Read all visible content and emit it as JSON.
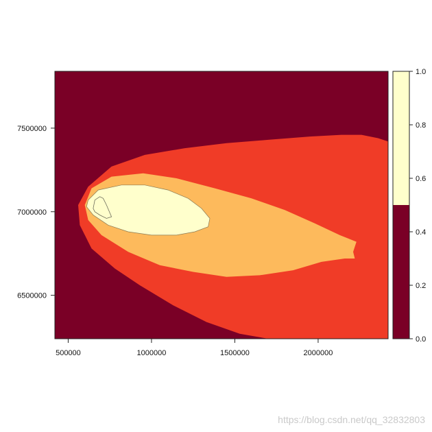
{
  "chart_data": {
    "type": "heatmap",
    "title": "",
    "xlabel": "",
    "ylabel": "",
    "xlim": [
      420000,
      2420000
    ],
    "ylim": [
      6240000,
      7840000
    ],
    "x_ticks": [
      {
        "value": 500000,
        "label": "500000"
      },
      {
        "value": 1000000,
        "label": "1000000"
      },
      {
        "value": 1500000,
        "label": "1500000"
      },
      {
        "value": 2000000,
        "label": "2000000"
      }
    ],
    "y_ticks": [
      {
        "value": 6500000,
        "label": "6500000"
      },
      {
        "value": 7000000,
        "label": "7000000"
      },
      {
        "value": 7500000,
        "label": "7500000"
      }
    ],
    "regions": [
      {
        "name": "outer",
        "color": "#F03C27",
        "polygon": [
          [
            1700000,
            6240000
          ],
          [
            1530000,
            6270000
          ],
          [
            1330000,
            6340000
          ],
          [
            1130000,
            6440000
          ],
          [
            930000,
            6560000
          ],
          [
            780000,
            6660000
          ],
          [
            640000,
            6780000
          ],
          [
            570000,
            6920000
          ],
          [
            560000,
            7040000
          ],
          [
            620000,
            7150000
          ],
          [
            760000,
            7270000
          ],
          [
            960000,
            7340000
          ],
          [
            1200000,
            7380000
          ],
          [
            1450000,
            7410000
          ],
          [
            1700000,
            7430000
          ],
          [
            1950000,
            7450000
          ],
          [
            2140000,
            7460000
          ],
          [
            2260000,
            7460000
          ],
          [
            2360000,
            7440000
          ],
          [
            2420000,
            7420000
          ],
          [
            2420000,
            6240000
          ]
        ]
      },
      {
        "name": "middle",
        "color": "#FDBA5C",
        "polygon": [
          [
            600000,
            7040000
          ],
          [
            640000,
            7140000
          ],
          [
            760000,
            7210000
          ],
          [
            950000,
            7230000
          ],
          [
            1150000,
            7200000
          ],
          [
            1380000,
            7140000
          ],
          [
            1600000,
            7080000
          ],
          [
            1800000,
            7010000
          ],
          [
            1980000,
            6930000
          ],
          [
            2130000,
            6860000
          ],
          [
            2230000,
            6820000
          ],
          [
            2210000,
            6760000
          ],
          [
            2220000,
            6720000
          ],
          [
            2160000,
            6720000
          ],
          [
            2020000,
            6700000
          ],
          [
            1850000,
            6650000
          ],
          [
            1650000,
            6620000
          ],
          [
            1450000,
            6610000
          ],
          [
            1250000,
            6640000
          ],
          [
            1050000,
            6680000
          ],
          [
            860000,
            6760000
          ],
          [
            700000,
            6860000
          ],
          [
            620000,
            6950000
          ]
        ]
      },
      {
        "name": "inner",
        "color": "#FFFFCC",
        "polygon": [
          [
            620000,
            7070000
          ],
          [
            680000,
            7130000
          ],
          [
            820000,
            7160000
          ],
          [
            960000,
            7160000
          ],
          [
            1100000,
            7130000
          ],
          [
            1220000,
            7080000
          ],
          [
            1300000,
            7020000
          ],
          [
            1350000,
            6960000
          ],
          [
            1340000,
            6910000
          ],
          [
            1260000,
            6880000
          ],
          [
            1150000,
            6860000
          ],
          [
            1000000,
            6860000
          ],
          [
            860000,
            6880000
          ],
          [
            740000,
            6920000
          ],
          [
            650000,
            6980000
          ],
          [
            610000,
            7030000
          ]
        ]
      }
    ],
    "contour_line": {
      "color": "#6b6b5a",
      "polygon": [
        [
          650000,
          7020000
        ],
        [
          660000,
          7070000
        ],
        [
          690000,
          7090000
        ],
        [
          710000,
          7080000
        ],
        [
          730000,
          7040000
        ],
        [
          760000,
          6970000
        ],
        [
          730000,
          6960000
        ],
        [
          690000,
          6980000
        ],
        [
          660000,
          7000000
        ]
      ]
    },
    "background_color": "#7A0026",
    "colorbar": {
      "range": [
        0,
        1
      ],
      "ticks": [
        {
          "value": 0.0,
          "label": "0.0"
        },
        {
          "value": 0.2,
          "label": "0.2"
        },
        {
          "value": 0.4,
          "label": "0.4"
        },
        {
          "value": 0.6,
          "label": "0.6"
        },
        {
          "value": 0.8,
          "label": "0.8"
        },
        {
          "value": 1.0,
          "label": "1.0"
        }
      ],
      "segments": [
        {
          "from": 0.0,
          "to": 0.5,
          "color": "#7A0026"
        },
        {
          "from": 0.5,
          "to": 1.0,
          "color": "#FFFFCC"
        }
      ]
    }
  },
  "watermark": "https://blog.csdn.net/qq_32832803"
}
